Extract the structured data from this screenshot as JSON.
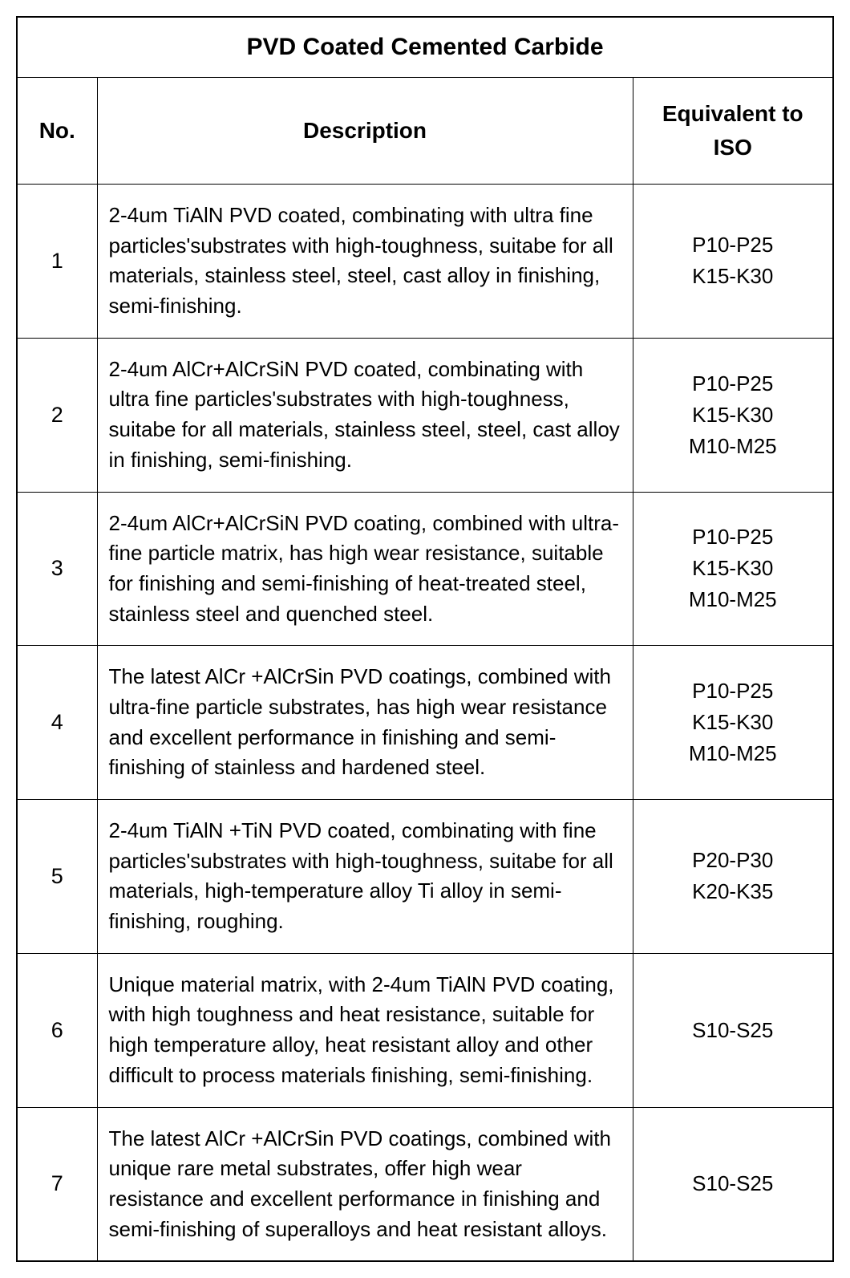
{
  "table": {
    "title": "PVD Coated Cemented Carbide",
    "headers": {
      "no": "No.",
      "description": "Description",
      "iso": "Equivalent to ISO"
    },
    "rows": [
      {
        "no": "1",
        "description": "2-4um TiAlN PVD coated, combinating with ultra fine particles'substrates with high-toughness, suitabe for all materials, stainless steel, steel, cast alloy in finishing, semi-finishing.",
        "iso": [
          "P10-P25",
          "K15-K30"
        ]
      },
      {
        "no": "2",
        "description": "2-4um AlCr+AlCrSiN PVD coated, combinating with ultra fine particles'substrates with high-toughness, suitabe for all materials, stainless steel, steel, cast alloy in finishing, semi-finishing.",
        "iso": [
          "P10-P25",
          "K15-K30",
          "M10-M25"
        ]
      },
      {
        "no": "3",
        "description": "2-4um AlCr+AlCrSiN PVD coating, combined with ultra-fine particle matrix, has high wear resistance, suitable for finishing and semi-finishing of heat-treated steel, stainless steel and quenched steel.",
        "iso": [
          "P10-P25",
          "K15-K30",
          "M10-M25"
        ]
      },
      {
        "no": "4",
        "description": "The latest AlCr +AlCrSin PVD coatings, combined with ultra-fine particle substrates, has high wear resistance and excellent performance in finishing and semi-finishing of stainless and hardened steel.",
        "iso": [
          "P10-P25",
          "K15-K30",
          "M10-M25"
        ]
      },
      {
        "no": "5",
        "description": "2-4um TiAlN +TiN PVD coated, combinating with fine particles'substrates with high-toughness, suitabe for all materials, high-temperature alloy Ti alloy in semi-finishing, roughing.",
        "iso": [
          "P20-P30",
          "K20-K35"
        ]
      },
      {
        "no": "6",
        "description": "Unique material matrix, with 2-4um TiAlN PVD coating, with high toughness and heat resistance, suitable for high temperature alloy, heat resistant alloy and other difficult to process materials finishing, semi-finishing.",
        "iso": [
          "S10-S25"
        ]
      },
      {
        "no": "7",
        "description": "The latest AlCr +AlCrSin PVD coatings, combined with unique rare metal substrates, offer high wear resistance and excellent performance in finishing and semi-finishing of superalloys and heat resistant alloys.",
        "iso": [
          "S10-S25"
        ]
      }
    ]
  },
  "styling": {
    "border_color": "#000000",
    "background_color": "#ffffff",
    "text_color": "#000000",
    "title_fontsize": 30,
    "header_fontsize": 28,
    "body_fontsize": 26,
    "col_widths": {
      "no": 100,
      "iso": 250
    }
  }
}
